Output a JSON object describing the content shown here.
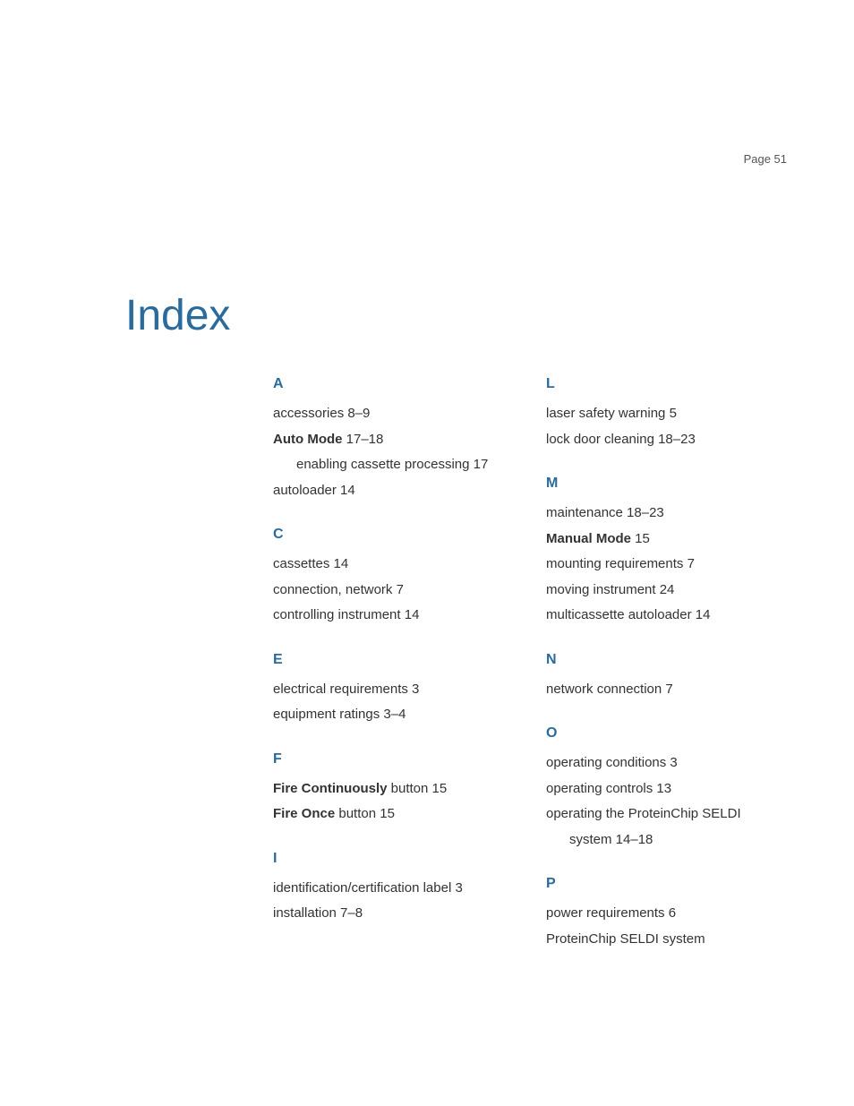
{
  "page_number": "Page 51",
  "title": "Index",
  "colors": {
    "heading": "#2a6b9c",
    "text": "#333333",
    "bg": "#ffffff"
  },
  "left_column": {
    "A": {
      "letter": "A",
      "entries": [
        {
          "text": "accessories 8–9"
        },
        {
          "bold": "Auto Mode",
          "rest": " 17–18"
        },
        {
          "sub": "enabling cassette processing 17"
        },
        {
          "text": "autoloader 14"
        }
      ]
    },
    "C": {
      "letter": "C",
      "entries": [
        {
          "text": "cassettes 14"
        },
        {
          "text": "connection, network 7"
        },
        {
          "text": "controlling instrument 14"
        }
      ]
    },
    "E": {
      "letter": "E",
      "entries": [
        {
          "text": "electrical requirements 3"
        },
        {
          "text": "equipment ratings 3–4"
        }
      ]
    },
    "F": {
      "letter": "F",
      "entries": [
        {
          "bold": "Fire Continuously",
          "rest": " button 15"
        },
        {
          "bold": "Fire Once",
          "rest": " button 15"
        }
      ]
    },
    "I": {
      "letter": "I",
      "entries": [
        {
          "text": "identification/certification label 3"
        },
        {
          "text": "installation 7–8"
        }
      ]
    }
  },
  "right_column": {
    "L": {
      "letter": "L",
      "entries": [
        {
          "text": "laser safety warning 5"
        },
        {
          "text": "lock door cleaning 18–23"
        }
      ]
    },
    "M": {
      "letter": "M",
      "entries": [
        {
          "text": "maintenance 18–23"
        },
        {
          "bold": "Manual Mode",
          "rest": " 15"
        },
        {
          "text": "mounting requirements 7"
        },
        {
          "text": "moving instrument 24"
        },
        {
          "text": "multicassette autoloader 14"
        }
      ]
    },
    "N": {
      "letter": "N",
      "entries": [
        {
          "text": "network connection 7"
        }
      ]
    },
    "O": {
      "letter": "O",
      "entries": [
        {
          "text": "operating conditions 3"
        },
        {
          "text": "operating controls 13"
        },
        {
          "text": "operating the ProteinChip SELDI"
        },
        {
          "cont": "system 14–18"
        }
      ]
    },
    "P": {
      "letter": "P",
      "entries": [
        {
          "text": "power requirements 6"
        },
        {
          "text": "ProteinChip SELDI system"
        }
      ]
    }
  }
}
